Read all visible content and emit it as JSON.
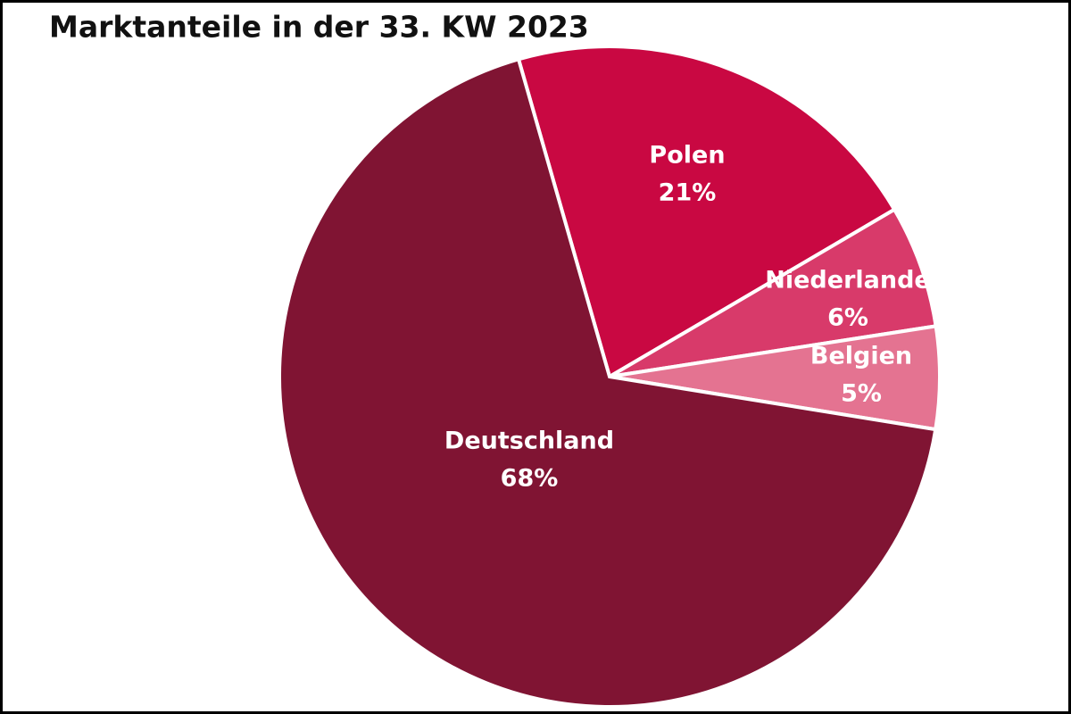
{
  "chart_data": {
    "type": "pie",
    "title": "Marktanteile in der 33. KW 2023",
    "categories": [
      "Polen",
      "Niederlande",
      "Belgien",
      "Deutschland"
    ],
    "values": [
      21,
      6,
      5,
      68
    ],
    "value_labels": [
      "21%",
      "6%",
      "5%",
      "68%"
    ],
    "colors": [
      "#c90842",
      "#d83a6a",
      "#e47391",
      "#801433"
    ]
  }
}
